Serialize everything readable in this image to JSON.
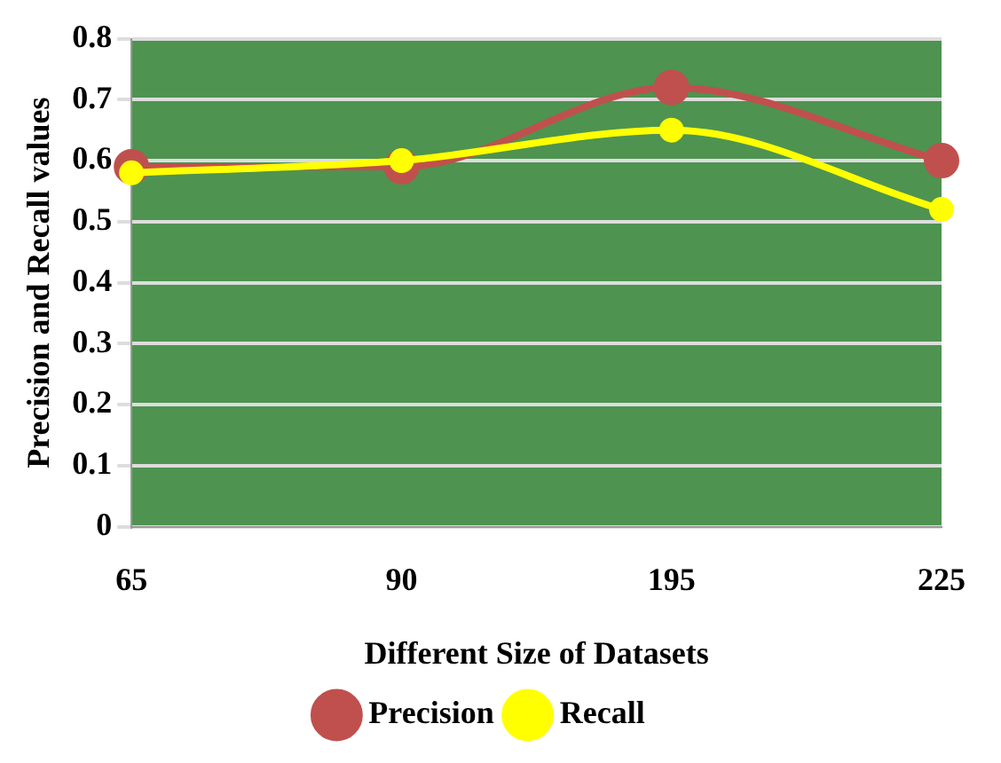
{
  "chart_data": {
    "type": "line",
    "xlabel": "Different Size of Datasets",
    "ylabel": "Precision and Recall values",
    "categories": [
      "65",
      "90",
      "195",
      "225"
    ],
    "series": [
      {
        "name": "Precision",
        "color": "#c0504d",
        "values": [
          0.59,
          0.59,
          0.72,
          0.6
        ]
      },
      {
        "name": "Recall",
        "color": "#ffff00",
        "values": [
          0.58,
          0.6,
          0.65,
          0.52
        ]
      }
    ],
    "ylim": [
      0,
      0.8
    ],
    "yticks": [
      0,
      0.1,
      0.2,
      0.3,
      0.4,
      0.5,
      0.6,
      0.7,
      0.8
    ],
    "grid": "y",
    "legend": "bottom",
    "marker": "circle",
    "line_style": "solid"
  }
}
